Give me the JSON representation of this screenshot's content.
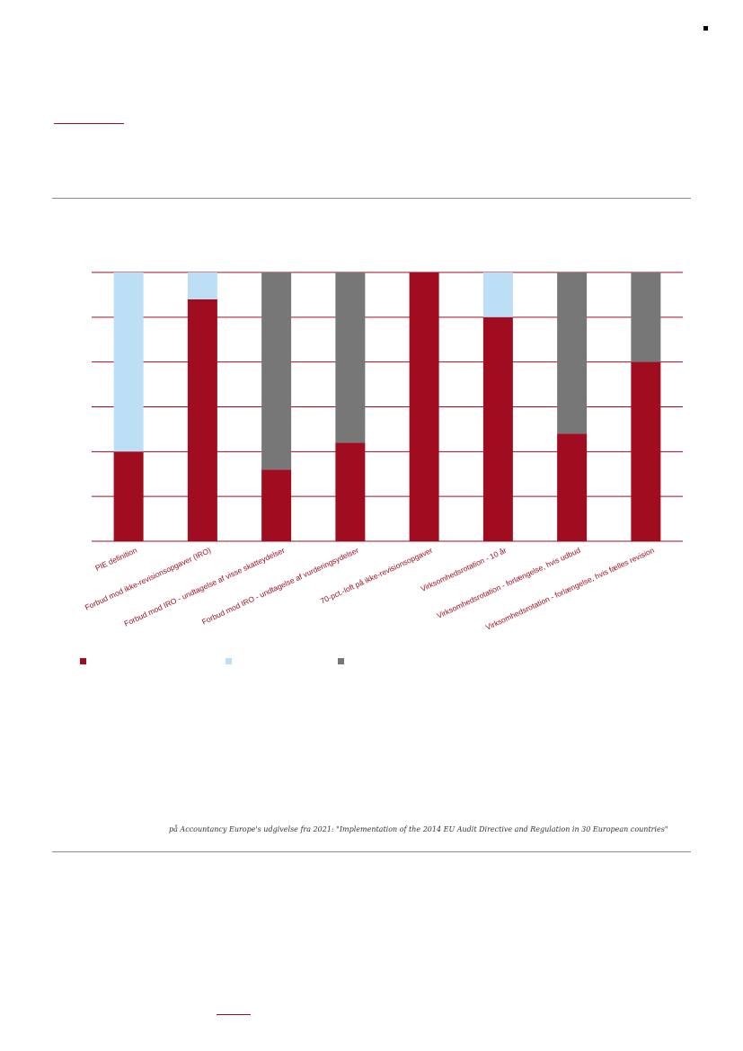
{
  "chart_data": {
    "type": "bar",
    "stacked": true,
    "categories": [
      "PIE definition",
      "Forbud mod ikke-revisionsopgaver (IRO)",
      "Forbud mod IRO - undtagelse af visse skatteydelser",
      "Forbud mod IRO - undtagelse af vurderingsydelser",
      "70-pct.-loft på ikke-revisionsopgaver",
      "Virksomhedsrotation - 10 år",
      "Virksomhedsrotation - forlængelse, hvis udbud",
      "Virksomhedsrotation - forlængelse, hvis fælles revision"
    ],
    "series": [
      {
        "values": [
          20,
          54,
          16,
          22,
          60,
          50,
          24,
          40
        ]
      },
      {
        "values": [
          40,
          6,
          0,
          0,
          0,
          10,
          0,
          0
        ]
      },
      {
        "values": [
          0,
          0,
          44,
          38,
          0,
          0,
          36,
          20
        ]
      }
    ],
    "ylim": [
      0,
      60
    ],
    "gridlines": [
      0,
      10,
      20,
      30,
      40,
      50,
      60
    ],
    "grid": true,
    "legend": "bottom-left"
  },
  "colors": {
    "series": [
      "#a10d20",
      "#bcdff5",
      "#777777"
    ],
    "grid": "#a10d20",
    "accent": "#a10d20",
    "rule": "#8c8c8c"
  },
  "source_note": "på Accountancy Europe's udgivelse fra 2021: \"Implementation  of the 2014 EU Audit Directive  and Regulation  in 30 European countries\""
}
